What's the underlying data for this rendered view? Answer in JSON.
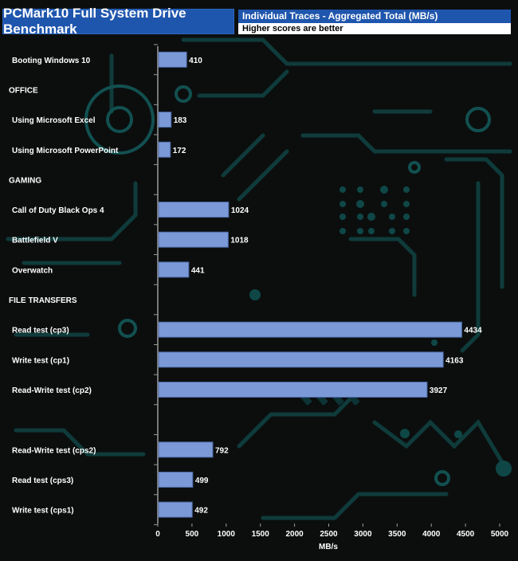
{
  "header": {
    "title": "PCMark10 Full System Drive Benchmark",
    "subtitle": "Individual Traces - Aggregated Total (MB/s)",
    "note": "Higher scores are better"
  },
  "colors": {
    "bar": "#7a99d6",
    "bar_border": "#4d6aa8",
    "header": "#1f56ad",
    "text": "#ffffff"
  },
  "chart_data": {
    "type": "bar",
    "orientation": "horizontal",
    "title": "PCMark10 Full System Drive Benchmark",
    "xlabel": "MB/s",
    "ylabel": "",
    "xlim": [
      0,
      5000
    ],
    "xticks": [
      "0",
      "500",
      "1000",
      "1500",
      "2000",
      "2500",
      "3000",
      "3500",
      "4000",
      "4500",
      "5000"
    ],
    "categories": [
      "Booting Windows 10",
      "OFFICE",
      "Using Microsoft Excel",
      "Using Microsoft PowerPoint",
      "GAMING",
      "Call of Duty Black Ops 4",
      "Battlefield V",
      "Overwatch",
      "FILE TRANSFERS",
      "Read test (cp3)",
      "Write test (cp1)",
      "Read-Write test (cp2)",
      "",
      "Read-Write test (cps2)",
      "Read test (cps3)",
      "Write test (cps1)"
    ],
    "values": [
      410,
      null,
      183,
      172,
      null,
      1024,
      1018,
      441,
      null,
      4434,
      4163,
      3927,
      null,
      792,
      499,
      492
    ],
    "value_labels": [
      "410",
      "",
      "183",
      "172",
      "",
      "1024",
      "1018",
      "441",
      "",
      "4434",
      "4163",
      "3927",
      "",
      "792",
      "499",
      "492"
    ]
  }
}
